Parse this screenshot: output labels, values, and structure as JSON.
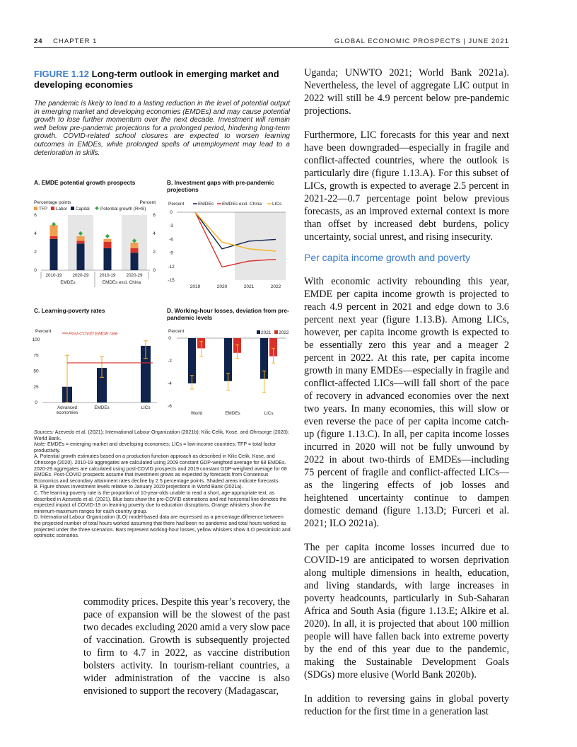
{
  "header": {
    "page_number": "24",
    "chapter": "CHAPTER 1",
    "publication": "GLOBAL ECONOMIC PROSPECTS | JUNE 2021"
  },
  "figure": {
    "number": "FIGURE 1.12",
    "title": "Long-term outlook in emerging market and developing economies",
    "description": "The pandemic is likely to lead to a lasting reduction in the level of potential output in emerging market and developing economies (EMDEs) and may cause potential growth to lose further momentum over the next decade. Investment will remain well below pre-pandemic projections for a prolonged period, hindering long-term growth. COVID-related school closures are expected to worsen learning outcomes in EMDEs, while prolonged spells of unemployment may lead to a deterioration in skills."
  },
  "panels": {
    "a": {
      "title": "A. EMDE potential growth prospects",
      "left_unit": "Percentage points",
      "right_unit": "Percent",
      "legend": [
        "TFP",
        "Labor",
        "Capital",
        "Potential growth (RHS)"
      ],
      "y_ticks": [
        "0",
        "2",
        "4",
        "6"
      ],
      "x_labels": [
        "2010-19",
        "2020-29",
        "2010-19",
        "2020-29"
      ],
      "group_labels": [
        "EMDEs",
        "EMDEs excl. China"
      ]
    },
    "b": {
      "title": "B. Investment gaps with pre-pandemic projections",
      "unit": "Percent",
      "legend": [
        "EMDEs",
        "EMDEs excl. China",
        "LICs"
      ],
      "y_ticks": [
        "0",
        "-3",
        "-6",
        "-9",
        "-12",
        "-15"
      ],
      "x_labels": [
        "2019",
        "2020",
        "2021",
        "2022"
      ]
    },
    "c": {
      "title": "C. Learning-poverty rates",
      "unit": "Percent",
      "legend": "Post-COVID EMDE rate",
      "y_ticks": [
        "100",
        "75",
        "50",
        "25",
        "0"
      ],
      "x_labels": [
        "Advanced economies",
        "EMDEs",
        "LICs"
      ]
    },
    "d": {
      "title": "D. Working-hour losses, deviation from pre-pandemic levels",
      "unit": "Percent",
      "legend": [
        "2021",
        "2022"
      ],
      "y_ticks": [
        "0",
        "-2",
        "-4",
        "-6"
      ],
      "x_labels": [
        "World",
        "EMDEs",
        "LICs"
      ]
    }
  },
  "chart_data": [
    {
      "type": "bar",
      "title": "A. EMDE potential growth prospects",
      "categories": [
        "2010-19",
        "2020-29",
        "2010-19",
        "2020-29"
      ],
      "groups": [
        "EMDEs",
        "EMDEs",
        "EMDEs excl. China",
        "EMDEs excl. China"
      ],
      "series": [
        {
          "name": "TFP",
          "values": [
            1.2,
            0.5,
            0.3,
            0.6
          ]
        },
        {
          "name": "Labor",
          "values": [
            0.3,
            0.3,
            0.7,
            0.5
          ]
        },
        {
          "name": "Capital",
          "values": [
            3.4,
            2.9,
            2.4,
            1.9
          ]
        },
        {
          "name": "Potential growth (RHS)",
          "values": [
            5.0,
            4.0,
            3.7,
            3.2
          ]
        }
      ],
      "ylim": [
        0,
        6
      ],
      "colors": [
        "#f0a050",
        "#d9312a",
        "#10234c",
        "#3aa84a"
      ]
    },
    {
      "type": "line",
      "title": "B. Investment gaps with pre-pandemic projections",
      "x": [
        "2019",
        "2020",
        "2021",
        "2022"
      ],
      "series": [
        {
          "name": "EMDEs",
          "values": [
            0,
            -8.1,
            -6.4,
            -6.0
          ]
        },
        {
          "name": "EMDEs excl. China",
          "values": [
            0,
            -12.1,
            -10.8,
            -10.4
          ]
        },
        {
          "name": "LICs",
          "values": [
            0,
            -6.6,
            -8.1,
            -8.6
          ]
        }
      ],
      "ylim": [
        -15,
        0
      ],
      "colors": [
        "#10234c",
        "#d9312a",
        "#f5b21a"
      ]
    },
    {
      "type": "bar",
      "title": "C. Learning-poverty rates",
      "categories": [
        "Advanced economies",
        "EMDEs",
        "LICs"
      ],
      "values": [
        25,
        55,
        90
      ],
      "whiskers": [
        [
          0,
          75
        ],
        [
          40,
          73
        ],
        [
          70,
          98
        ]
      ],
      "reference_line": {
        "name": "Post-COVID EMDE rate",
        "value": 63
      },
      "ylim": [
        0,
        100
      ]
    },
    {
      "type": "bar",
      "title": "D. Working-hour losses, deviation from pre-pandemic levels",
      "categories": [
        "World",
        "EMDEs",
        "LICs"
      ],
      "series": [
        {
          "name": "2021",
          "values": [
            -4.0,
            -3.8,
            -3.6
          ]
        },
        {
          "name": "2022",
          "values": [
            -0.9,
            -1.3,
            -1.6
          ]
        }
      ],
      "whiskers_2021": [
        [
          -4.5,
          -3.3
        ],
        [
          -4.6,
          -3.1
        ],
        [
          -4.8,
          -2.9
        ]
      ],
      "whiskers_2022": [
        [
          -1.6,
          -0.3
        ],
        [
          -1.8,
          -0.6
        ],
        [
          -2.2,
          -0.9
        ]
      ],
      "ylim": [
        -6,
        0
      ],
      "colors": [
        "#10234c",
        "#d9312a",
        "#f5b21a"
      ]
    }
  ],
  "notes": {
    "sources_label": "Sources:",
    "sources": "Azevedo et al. (2021); International Labour Organization (2021b); Kilic Celik, Kose, and Ohnsorge (2020); World Bank.",
    "note_label": "Note:",
    "note": "EMDEs = emerging market and developing economies; LICs = low-income countries; TFP = total factor productivity.",
    "a": "A. Potential growth estimates based on a production function approach as described in Kilic Celik, Kose, and Ohnsorge (2020). 2010-19 aggregates are calculated using 2009 constant GDP-weighted average for 68 EMDEs. 2020-29 aggregates are calculated using post-COVID prospects and 2019 constant GDP-weighted average for 68 EMDEs. Post-COVID prospects assume that investment grows as expected by forecasts from Consensus Economics and secondary attainment rates decline by 2.5 percentage points. Shaded areas indicate forecasts.",
    "b": "B. Figure shows investment levels relative to January 2020 projections in World Bank (2021a).",
    "c": "C. The learning-poverty rate is the proportion of 10-year-olds unable to read a short, age-appropriate text, as described in Azevedo et al. (2021). Blue bars show the pre-COVID estimations and red horizontal line denotes the expected impact of COVID-19 on learning poverty due to education disruptions. Orange whiskers show the minimum-maximum ranges for each country group.",
    "d": "D. International Labour Organization (ILO) model-based data are expressed as a percentage difference between the projected number of total hours worked assuming that there had been no pandemic and total hours worked as projected under the three scenarios. Bars represent working-hour losses, yellow whiskers show ILO pessimistic and optimistic scenarios."
  },
  "left_text": "commodity prices. Despite this year’s recovery, the pace of expansion will be the slowest of the past two decades excluding 2020 amid a very slow pace of vaccination. Growth is subsequently projected to firm to 4.7 in 2022, as vaccine distribution bolsters activity. In tourism-reliant countries, a wider administration of the vaccine is also envisioned to support the recovery (Madagascar,",
  "right_paragraphs": [
    "Uganda; UNWTO 2021; World Bank 2021a). Nevertheless, the level of aggregate LIC output in 2022 will still be 4.9 percent below pre-pandemic projections.",
    "Furthermore, LIC forecasts for this year and next have been downgraded—especially in fragile and conflict-affected countries, where the outlook is particularly dire (figure 1.13.A). For this subset of LICs, growth is expected to average 2.5 percent in 2021-22—0.7 percentage point below previous forecasts, as an improved external context is more than offset by increased debt burdens, policy uncertainty, social unrest, and rising insecurity."
  ],
  "subheading": "Per capita income growth and poverty",
  "right_paragraphs_2": [
    "With economic activity rebounding this year, EMDE per capita income growth is projected to reach 4.9 percent in 2021 and edge down to 3.6 percent next year (figure 1.13.B). Among LICs, however, per capita income growth is expected to be essentially zero this year and a meager 2 percent in 2022. At this rate, per capita income growth in many EMDEs—especially in fragile and conflict-affected LICs—will fall short of the pace of recovery in advanced economies over the next two years. In many economies, this will slow or even reverse the pace of per capita income catch-up (figure 1.13.C). In all, per capita income losses incurred in 2020 will not be fully unwound by 2022 in about two-thirds of EMDEs—including 75 percent of fragile and conflict-affected LICs—as the lingering effects of job losses and heightened uncertainty continue to dampen domestic demand (figure 1.13.D; Furceri et al. 2021; ILO 2021a).",
    "The per capita income losses incurred due to COVID-19 are anticipated to worsen deprivation along multiple dimensions in health, education, and living standards, with large increases in poverty headcounts, particularly in Sub-Saharan Africa and South Asia (figure 1.13.E; Alkire et al. 2020). In all, it is projected that about 100 million people will have fallen back into extreme poverty by the end of this year due to the pandemic, making the Sustainable Development Goals (SDGs) more elusive (World Bank 2020b).",
    "In addition to reversing gains in global poverty reduction for the first time in a generation last"
  ]
}
